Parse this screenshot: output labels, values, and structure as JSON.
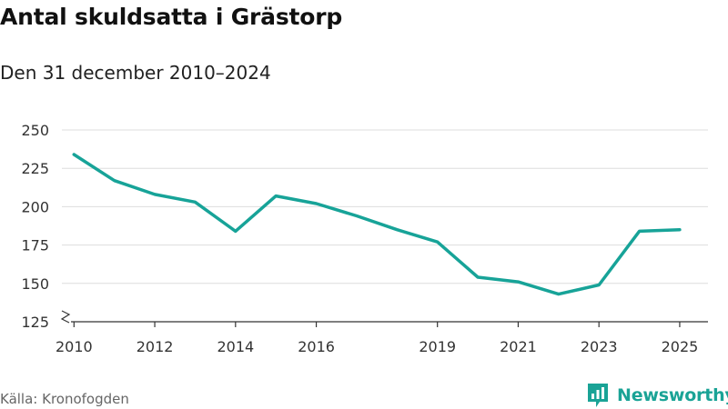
{
  "header": {
    "title": "Antal skuldsatta i Grästorp",
    "subtitle": "Den 31 december 2010–2024"
  },
  "footer": {
    "source": "Källa: Kronofogden",
    "brand": "Newsworthy",
    "brand_icon": "newsworthy-logo-icon"
  },
  "colors": {
    "line": "#17a398",
    "grid": "#dddddd",
    "axis": "#333333",
    "brand": "#1aa396"
  },
  "chart_data": {
    "type": "line",
    "title": "Antal skuldsatta i Grästorp",
    "subtitle": "Den 31 december 2010–2024",
    "xlabel": "",
    "ylabel": "",
    "x": [
      2010,
      2011,
      2012,
      2013,
      2014,
      2015,
      2016,
      2017,
      2018,
      2019,
      2020,
      2021,
      2022,
      2023,
      2024,
      2025
    ],
    "values": [
      234,
      217,
      208,
      203,
      184,
      207,
      202,
      194,
      185,
      177,
      154,
      151,
      143,
      149,
      184,
      185
    ],
    "xlim": [
      2009.7,
      2025.7
    ],
    "ylim": [
      125,
      250
    ],
    "yticks": [
      125,
      150,
      175,
      200,
      225,
      250
    ],
    "xticks": [
      2010,
      2012,
      2014,
      2016,
      2019,
      2021,
      2023,
      2025
    ],
    "grid": true,
    "axis_break": true
  }
}
